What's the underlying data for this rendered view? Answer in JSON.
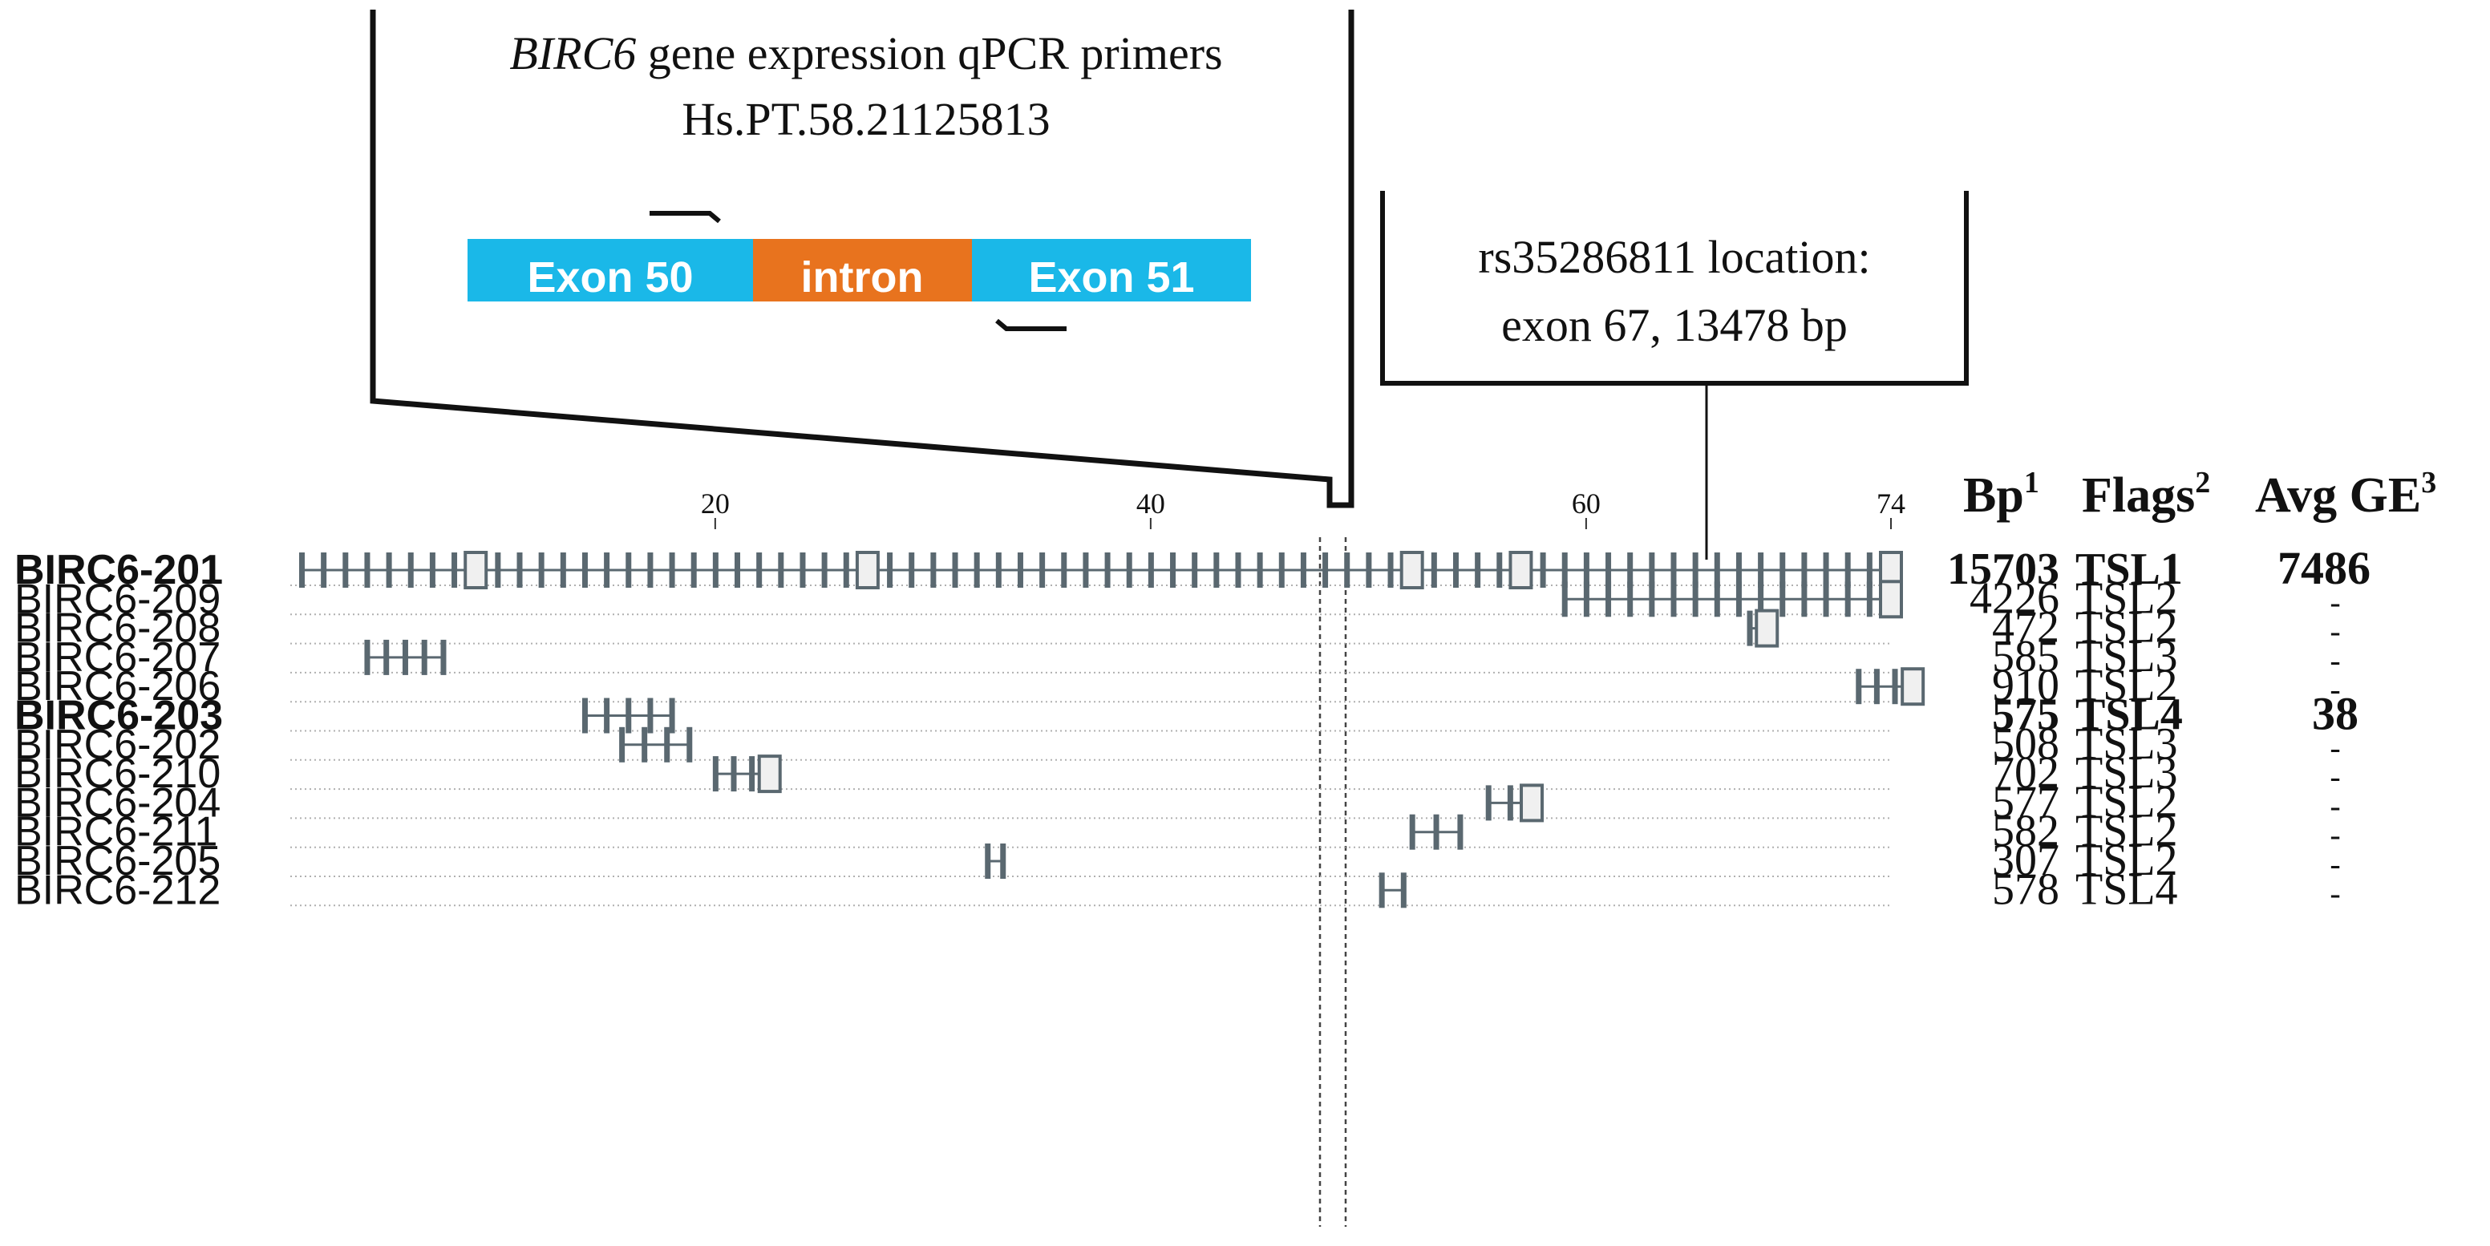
{
  "primer_box": {
    "title_gene": "BIRC6",
    "title_rest": " gene expression qPCR primers",
    "assay_id": "Hs.PT.58.21125813",
    "segments": [
      {
        "label": "Exon 50",
        "color": "#1ab8e8"
      },
      {
        "label": "intron",
        "color": "#e8731e"
      },
      {
        "label": "Exon 51",
        "color": "#1ab8e8"
      }
    ]
  },
  "snp_box": {
    "line1": "rs35286811 location:",
    "line2": "exon 67, 13478 bp"
  },
  "axis": {
    "ticks": [
      "20",
      "40",
      "60",
      "74"
    ],
    "tick_values": [
      20,
      40,
      60,
      74
    ],
    "max_exon": 74
  },
  "headers": {
    "bp": "Bp",
    "bp_sup": "1",
    "flags": "Flags",
    "flags_sup": "2",
    "avg_ge": "Avg GE",
    "avg_ge_sup": "3"
  },
  "transcripts": [
    {
      "name": "BIRC6-201",
      "bp": "15703",
      "flag": "TSL1",
      "ge": "7486",
      "bold": true
    },
    {
      "name": "BIRC6-209",
      "bp": "4226",
      "flag": "TSL2",
      "ge": "-",
      "bold": false
    },
    {
      "name": "BIRC6-208",
      "bp": "472",
      "flag": "TSL2",
      "ge": "-",
      "bold": false
    },
    {
      "name": "BIRC6-207",
      "bp": "585",
      "flag": "TSL3",
      "ge": "-",
      "bold": false
    },
    {
      "name": "BIRC6-206",
      "bp": "910",
      "flag": "TSL2",
      "ge": "-",
      "bold": false
    },
    {
      "name": "BIRC6-203",
      "bp": "575",
      "flag": "TSL4",
      "ge": "38",
      "bold": true
    },
    {
      "name": "BIRC6-202",
      "bp": "508",
      "flag": "TSL3",
      "ge": "-",
      "bold": false
    },
    {
      "name": "BIRC6-210",
      "bp": "702",
      "flag": "TSL3",
      "ge": "-",
      "bold": false
    },
    {
      "name": "BIRC6-204",
      "bp": "577",
      "flag": "TSL2",
      "ge": "-",
      "bold": false
    },
    {
      "name": "BIRC6-211",
      "bp": "582",
      "flag": "TSL2",
      "ge": "-",
      "bold": false
    },
    {
      "name": "BIRC6-205",
      "bp": "307",
      "flag": "TSL2",
      "ge": "-",
      "bold": false
    },
    {
      "name": "BIRC6-212",
      "bp": "578",
      "flag": "TSL4",
      "ge": "-",
      "bold": false
    }
  ],
  "colors": {
    "exon": "#5a6870",
    "text": "#111111"
  }
}
